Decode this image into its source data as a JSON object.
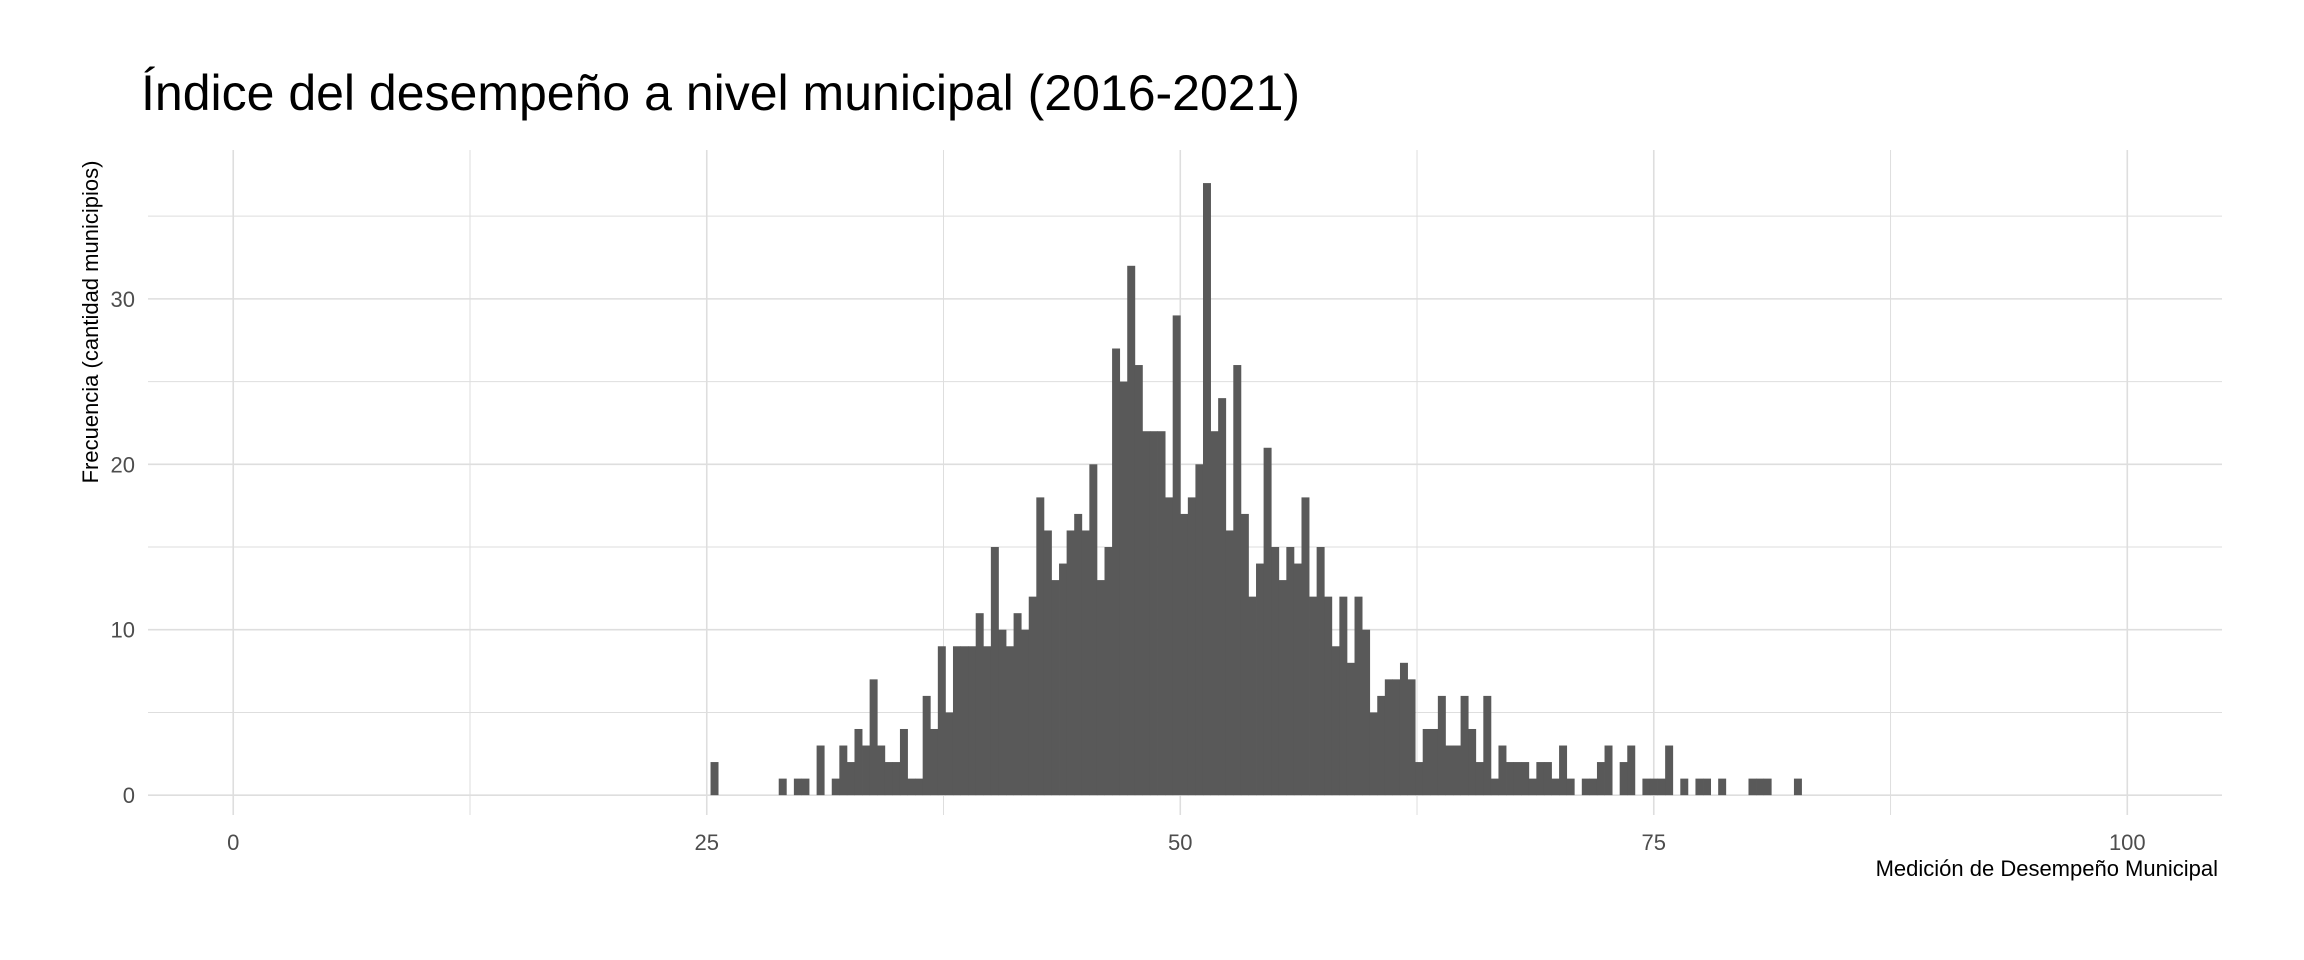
{
  "chart_data": {
    "type": "bar",
    "title": "Índice del desempeño a nivel municipal (2016-2021)",
    "xlabel": "Medición de Desempeño Municipal",
    "ylabel": "Frecuencia (cantidad municipios)",
    "xlim": [
      -4.5,
      105
    ],
    "ylim": [
      -1.2,
      39
    ],
    "x_ticks": [
      0,
      25,
      50,
      75,
      100
    ],
    "y_ticks": [
      0,
      10,
      20,
      30
    ],
    "x_minor_ticks": [
      12.5,
      37.5,
      62.5,
      87.5
    ],
    "y_minor_ticks": [
      5,
      15,
      25,
      35
    ],
    "bin_width": 0.4,
    "bar_color": "#595959",
    "grid": true,
    "series": [
      {
        "bins": [
          {
            "x": 25.4,
            "y": 2
          },
          {
            "x": 29.0,
            "y": 1
          },
          {
            "x": 29.8,
            "y": 1
          },
          {
            "x": 30.2,
            "y": 1
          },
          {
            "x": 31.0,
            "y": 3
          },
          {
            "x": 31.8,
            "y": 1
          },
          {
            "x": 32.2,
            "y": 3
          },
          {
            "x": 32.6,
            "y": 2
          },
          {
            "x": 33.0,
            "y": 4
          },
          {
            "x": 33.4,
            "y": 3
          },
          {
            "x": 33.8,
            "y": 7
          },
          {
            "x": 34.2,
            "y": 3
          },
          {
            "x": 34.6,
            "y": 2
          },
          {
            "x": 35.0,
            "y": 2
          },
          {
            "x": 35.4,
            "y": 4
          },
          {
            "x": 35.8,
            "y": 1
          },
          {
            "x": 36.2,
            "y": 1
          },
          {
            "x": 36.6,
            "y": 6
          },
          {
            "x": 37.0,
            "y": 4
          },
          {
            "x": 37.4,
            "y": 9
          },
          {
            "x": 37.8,
            "y": 5
          },
          {
            "x": 38.2,
            "y": 9
          },
          {
            "x": 38.6,
            "y": 9
          },
          {
            "x": 39.0,
            "y": 9
          },
          {
            "x": 39.4,
            "y": 11
          },
          {
            "x": 39.8,
            "y": 9
          },
          {
            "x": 40.2,
            "y": 15
          },
          {
            "x": 40.6,
            "y": 10
          },
          {
            "x": 41.0,
            "y": 9
          },
          {
            "x": 41.4,
            "y": 11
          },
          {
            "x": 41.8,
            "y": 10
          },
          {
            "x": 42.2,
            "y": 12
          },
          {
            "x": 42.6,
            "y": 18
          },
          {
            "x": 43.0,
            "y": 16
          },
          {
            "x": 43.4,
            "y": 13
          },
          {
            "x": 43.8,
            "y": 14
          },
          {
            "x": 44.2,
            "y": 16
          },
          {
            "x": 44.6,
            "y": 17
          },
          {
            "x": 45.0,
            "y": 16
          },
          {
            "x": 45.4,
            "y": 20
          },
          {
            "x": 45.8,
            "y": 13
          },
          {
            "x": 46.2,
            "y": 15
          },
          {
            "x": 46.6,
            "y": 27
          },
          {
            "x": 47.0,
            "y": 25
          },
          {
            "x": 47.4,
            "y": 32
          },
          {
            "x": 47.8,
            "y": 26
          },
          {
            "x": 48.2,
            "y": 22
          },
          {
            "x": 48.6,
            "y": 22
          },
          {
            "x": 49.0,
            "y": 22
          },
          {
            "x": 49.4,
            "y": 18
          },
          {
            "x": 49.8,
            "y": 29
          },
          {
            "x": 50.2,
            "y": 17
          },
          {
            "x": 50.6,
            "y": 18
          },
          {
            "x": 51.0,
            "y": 20
          },
          {
            "x": 51.4,
            "y": 37
          },
          {
            "x": 51.8,
            "y": 22
          },
          {
            "x": 52.2,
            "y": 24
          },
          {
            "x": 52.6,
            "y": 16
          },
          {
            "x": 53.0,
            "y": 26
          },
          {
            "x": 53.4,
            "y": 17
          },
          {
            "x": 53.8,
            "y": 12
          },
          {
            "x": 54.2,
            "y": 14
          },
          {
            "x": 54.6,
            "y": 21
          },
          {
            "x": 55.0,
            "y": 15
          },
          {
            "x": 55.4,
            "y": 13
          },
          {
            "x": 55.8,
            "y": 15
          },
          {
            "x": 56.2,
            "y": 14
          },
          {
            "x": 56.6,
            "y": 18
          },
          {
            "x": 57.0,
            "y": 12
          },
          {
            "x": 57.4,
            "y": 15
          },
          {
            "x": 57.8,
            "y": 12
          },
          {
            "x": 58.2,
            "y": 9
          },
          {
            "x": 58.6,
            "y": 12
          },
          {
            "x": 59.0,
            "y": 8
          },
          {
            "x": 59.4,
            "y": 12
          },
          {
            "x": 59.8,
            "y": 10
          },
          {
            "x": 60.2,
            "y": 5
          },
          {
            "x": 60.6,
            "y": 6
          },
          {
            "x": 61.0,
            "y": 7
          },
          {
            "x": 61.4,
            "y": 7
          },
          {
            "x": 61.8,
            "y": 8
          },
          {
            "x": 62.2,
            "y": 7
          },
          {
            "x": 62.6,
            "y": 2
          },
          {
            "x": 63.0,
            "y": 4
          },
          {
            "x": 63.4,
            "y": 4
          },
          {
            "x": 63.8,
            "y": 6
          },
          {
            "x": 64.2,
            "y": 3
          },
          {
            "x": 64.6,
            "y": 3
          },
          {
            "x": 65.0,
            "y": 6
          },
          {
            "x": 65.4,
            "y": 4
          },
          {
            "x": 65.8,
            "y": 2
          },
          {
            "x": 66.2,
            "y": 6
          },
          {
            "x": 66.6,
            "y": 1
          },
          {
            "x": 67.0,
            "y": 3
          },
          {
            "x": 67.4,
            "y": 2
          },
          {
            "x": 67.8,
            "y": 2
          },
          {
            "x": 68.2,
            "y": 2
          },
          {
            "x": 68.6,
            "y": 1
          },
          {
            "x": 69.0,
            "y": 2
          },
          {
            "x": 69.4,
            "y": 2
          },
          {
            "x": 69.8,
            "y": 1
          },
          {
            "x": 70.2,
            "y": 3
          },
          {
            "x": 70.6,
            "y": 1
          },
          {
            "x": 71.4,
            "y": 1
          },
          {
            "x": 71.8,
            "y": 1
          },
          {
            "x": 72.2,
            "y": 2
          },
          {
            "x": 72.6,
            "y": 3
          },
          {
            "x": 73.4,
            "y": 2
          },
          {
            "x": 73.8,
            "y": 3
          },
          {
            "x": 74.6,
            "y": 1
          },
          {
            "x": 75.0,
            "y": 1
          },
          {
            "x": 75.4,
            "y": 1
          },
          {
            "x": 75.8,
            "y": 3
          },
          {
            "x": 76.6,
            "y": 1
          },
          {
            "x": 77.4,
            "y": 1
          },
          {
            "x": 77.8,
            "y": 1
          },
          {
            "x": 78.6,
            "y": 1
          },
          {
            "x": 80.2,
            "y": 1
          },
          {
            "x": 80.6,
            "y": 1
          },
          {
            "x": 81.0,
            "y": 1
          },
          {
            "x": 82.6,
            "y": 1
          }
        ]
      }
    ]
  }
}
